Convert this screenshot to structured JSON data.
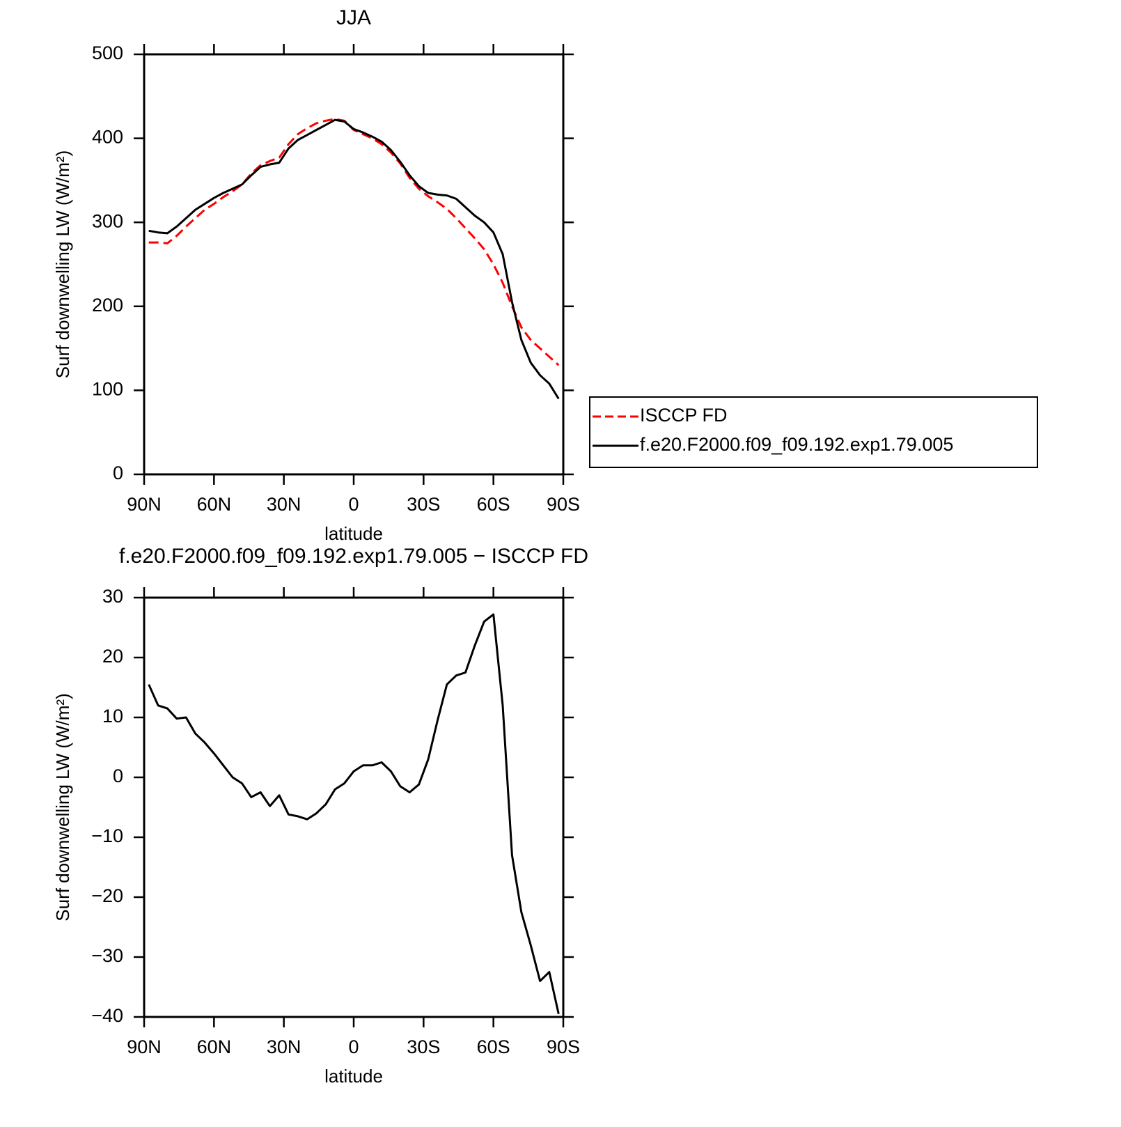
{
  "chart_data": [
    {
      "type": "line",
      "title": "JJA",
      "xlabel": "latitude",
      "ylabel": "Surf downwelling LW (W/m²)",
      "x": [
        88,
        84,
        80,
        76,
        72,
        68,
        64,
        60,
        56,
        52,
        48,
        44,
        40,
        36,
        32,
        28,
        24,
        20,
        16,
        12,
        8,
        4,
        0,
        -4,
        -8,
        -12,
        -16,
        -20,
        -24,
        -28,
        -32,
        -36,
        -40,
        -44,
        -48,
        -52,
        -56,
        -60,
        -64,
        -68,
        -72,
        -76,
        -80,
        -84,
        -88
      ],
      "series": [
        {
          "name": "ISCCP FD",
          "color": "#ff0000",
          "dash": true,
          "values": [
            276,
            276,
            275,
            284,
            295,
            305,
            315,
            322,
            330,
            337,
            345,
            358,
            368,
            373,
            377,
            393,
            405,
            412,
            418,
            421,
            423,
            421,
            410,
            405,
            400,
            393,
            383,
            370,
            353,
            340,
            331,
            324,
            316,
            305,
            293,
            281,
            268,
            250,
            228,
            200,
            175,
            160,
            150,
            140,
            130
          ]
        },
        {
          "name": "f.e20.F2000.f09_f09.192.exp1.79.005",
          "color": "#000000",
          "dash": false,
          "values": [
            290,
            288,
            287,
            295,
            305,
            315,
            322,
            329,
            335,
            340,
            345,
            356,
            366,
            369,
            371,
            388,
            398,
            404,
            410,
            416,
            422,
            420,
            411,
            407,
            402,
            396,
            386,
            372,
            356,
            343,
            335,
            333,
            332,
            328,
            318,
            308,
            300,
            288,
            262,
            205,
            160,
            133,
            118,
            108,
            90
          ]
        }
      ],
      "xlim": [
        90,
        -90
      ],
      "xticks": [
        {
          "value": 90,
          "label": "90N"
        },
        {
          "value": 60,
          "label": "60N"
        },
        {
          "value": 30,
          "label": "30N"
        },
        0,
        {
          "value": -30,
          "label": "30S"
        },
        {
          "value": -60,
          "label": "60S"
        },
        {
          "value": -90,
          "label": "90S"
        }
      ],
      "ylim": [
        0,
        500
      ],
      "yticks": [
        0,
        100,
        200,
        300,
        400,
        500
      ],
      "legend": "outside-right"
    },
    {
      "type": "line",
      "title": "f.e20.F2000.f09_f09.192.exp1.79.005 − ISCCP FD",
      "xlabel": "latitude",
      "ylabel": "Surf downwelling LW (W/m²)",
      "x": [
        88,
        84,
        80,
        76,
        72,
        68,
        64,
        60,
        56,
        52,
        48,
        44,
        40,
        36,
        32,
        28,
        24,
        20,
        16,
        12,
        8,
        4,
        0,
        -4,
        -8,
        -12,
        -16,
        -20,
        -24,
        -28,
        -32,
        -36,
        -40,
        -44,
        -48,
        -52,
        -56,
        -60,
        -64,
        -68,
        -72,
        -76,
        -80,
        -84,
        -88
      ],
      "series": [
        {
          "color": "#000000",
          "dash": false,
          "values": [
            15.5,
            12,
            11.5,
            9.8,
            10,
            7.3,
            5.8,
            4,
            2,
            0,
            -1,
            -3.3,
            -2.5,
            -4.8,
            -3,
            -6.2,
            -6.5,
            -7,
            -6,
            -4.5,
            -2,
            -1,
            1,
            2,
            2,
            2.5,
            1,
            -1.5,
            -2.5,
            -1.2,
            3,
            9.5,
            15.5,
            17,
            17.5,
            22,
            26,
            27.2,
            12,
            -13,
            -22.5,
            -28,
            -34,
            -32.5,
            -39.5
          ]
        }
      ],
      "xlim": [
        90,
        -90
      ],
      "xticks": [
        {
          "value": 90,
          "label": "90N"
        },
        {
          "value": 60,
          "label": "60N"
        },
        {
          "value": 30,
          "label": "30N"
        },
        0,
        {
          "value": -30,
          "label": "30S"
        },
        {
          "value": -60,
          "label": "60S"
        },
        {
          "value": -90,
          "label": "90S"
        }
      ],
      "ylim": [
        -40,
        30
      ],
      "yticks": [
        {
          "value": -40,
          "label": "−40"
        },
        {
          "value": -30,
          "label": "−30"
        },
        {
          "value": -20,
          "label": "−20"
        },
        {
          "value": -10,
          "label": "−10"
        },
        0,
        10,
        20,
        30
      ]
    }
  ]
}
